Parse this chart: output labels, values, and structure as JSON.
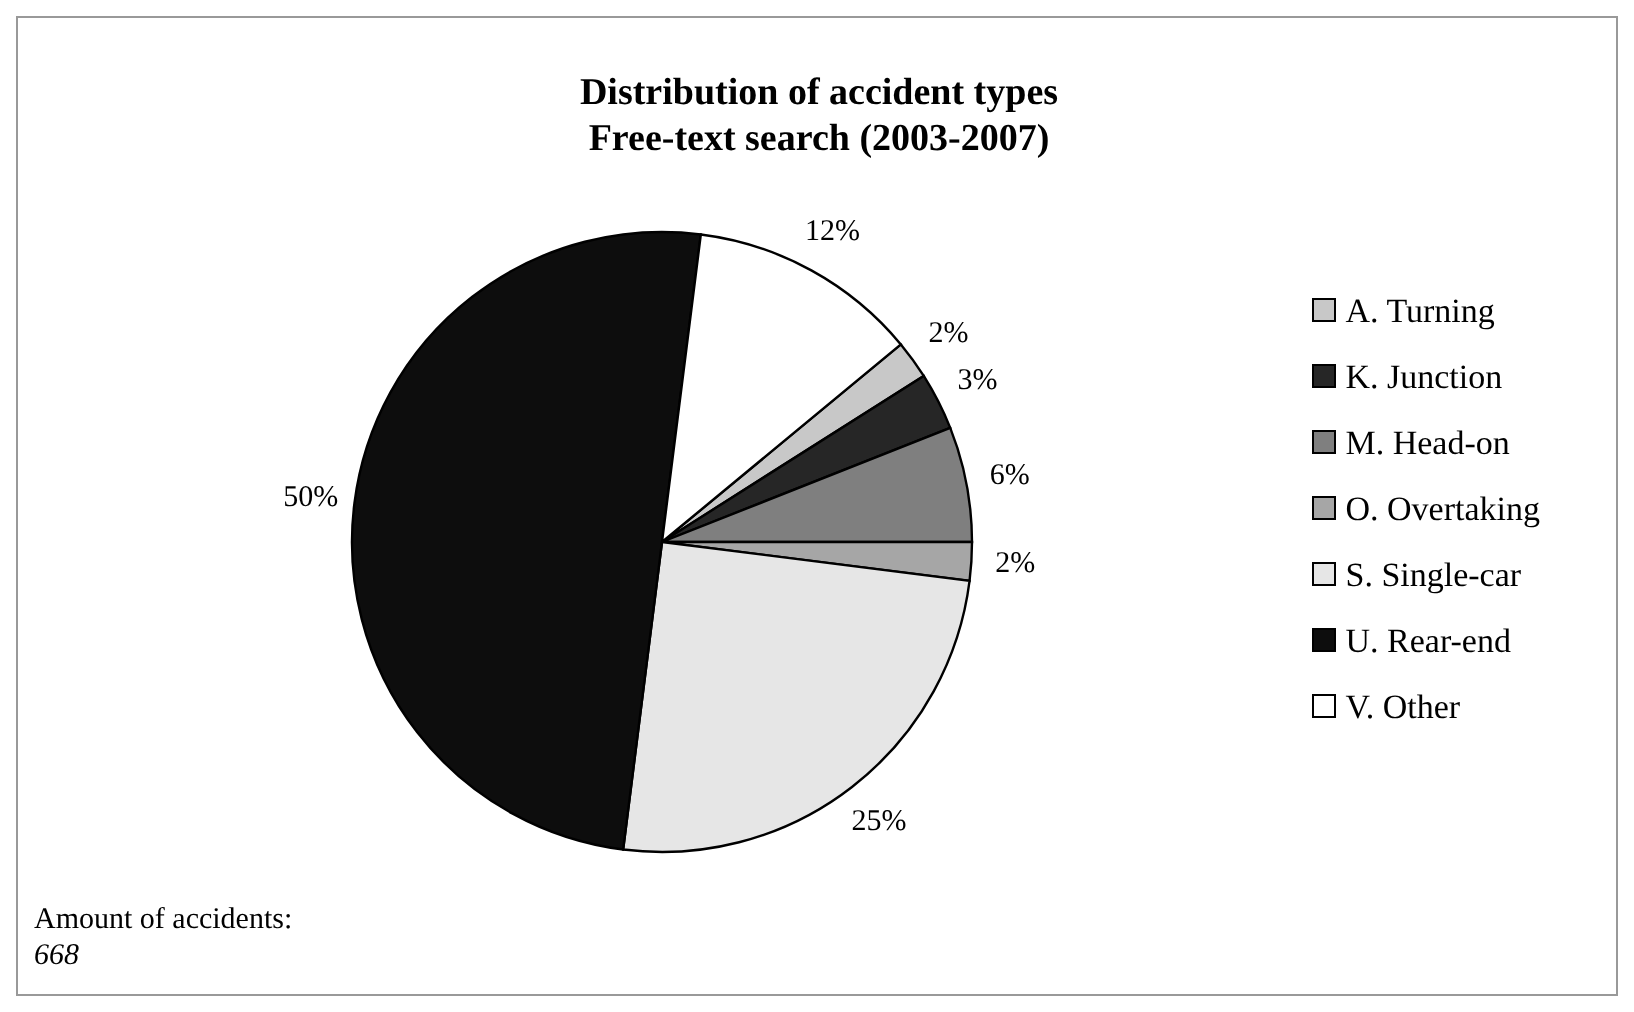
{
  "chart_data": {
    "type": "pie",
    "title": "Distribution of accident types",
    "subtitle": "Free-text search (2003-2007)",
    "categories": [
      "A. Turning",
      "K. Junction",
      "M. Head-on",
      "O. Overtaking",
      "S. Single-car",
      "U. Rear-end",
      "V. Other"
    ],
    "values": [
      2,
      3,
      6,
      2,
      25,
      50,
      12
    ],
    "value_labels": [
      "2%",
      "3%",
      "6%",
      "2%",
      "25%",
      "50%",
      "12%"
    ],
    "colors": [
      "#c8c8c8",
      "#262626",
      "#7f7f7f",
      "#a6a6a6",
      "#e6e6e6",
      "#0d0d0d",
      "#ffffff"
    ],
    "legend": "right",
    "annotations": [
      "Amount of accidents:",
      "668"
    ]
  }
}
